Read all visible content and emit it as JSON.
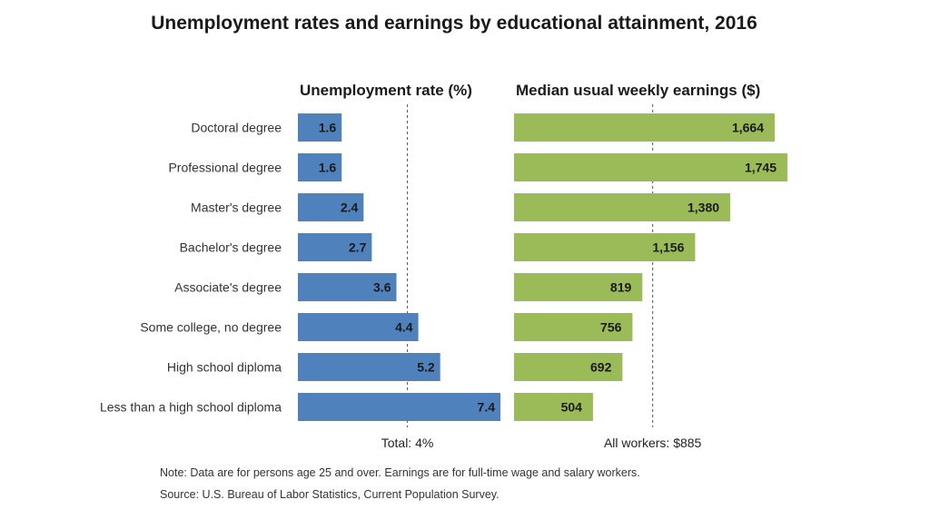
{
  "chart_data": {
    "type": "bar",
    "title": "Unemployment rates and earnings by educational attainment, 2016",
    "categories": [
      "Doctoral degree",
      "Professional degree",
      "Master's degree",
      "Bachelor's degree",
      "Associate's degree",
      "Some college, no degree",
      "High school diploma",
      "Less than a high school diploma"
    ],
    "panels": [
      {
        "title": "Unemployment rate (%)",
        "values": [
          1.6,
          1.6,
          2.4,
          2.7,
          3.6,
          4.4,
          5.2,
          7.4
        ],
        "value_labels": [
          "1.6",
          "1.6",
          "2.4",
          "2.7",
          "3.6",
          "4.4",
          "5.2",
          "7.4"
        ],
        "color": "#4f81bd",
        "reference": {
          "value": 4,
          "label": "Total: 4%"
        },
        "xlim": [
          0,
          7.4
        ]
      },
      {
        "title": "Median usual weekly earnings ($)",
        "values": [
          1664,
          1745,
          1380,
          1156,
          819,
          756,
          692,
          504
        ],
        "value_labels": [
          "1,664",
          "1,745",
          "1,380",
          "1,156",
          "819",
          "756",
          "692",
          "504"
        ],
        "color": "#9bbb59",
        "reference": {
          "value": 885,
          "label": "All workers: $885"
        },
        "xlim": [
          0,
          1745
        ]
      }
    ],
    "grid": false,
    "legend": "none"
  },
  "notes": {
    "note": "Note: Data are for persons age 25 and over. Earnings are for full-time wage and salary workers.",
    "source": "Source: U.S. Bureau of Labor Statistics, Current Population Survey."
  }
}
